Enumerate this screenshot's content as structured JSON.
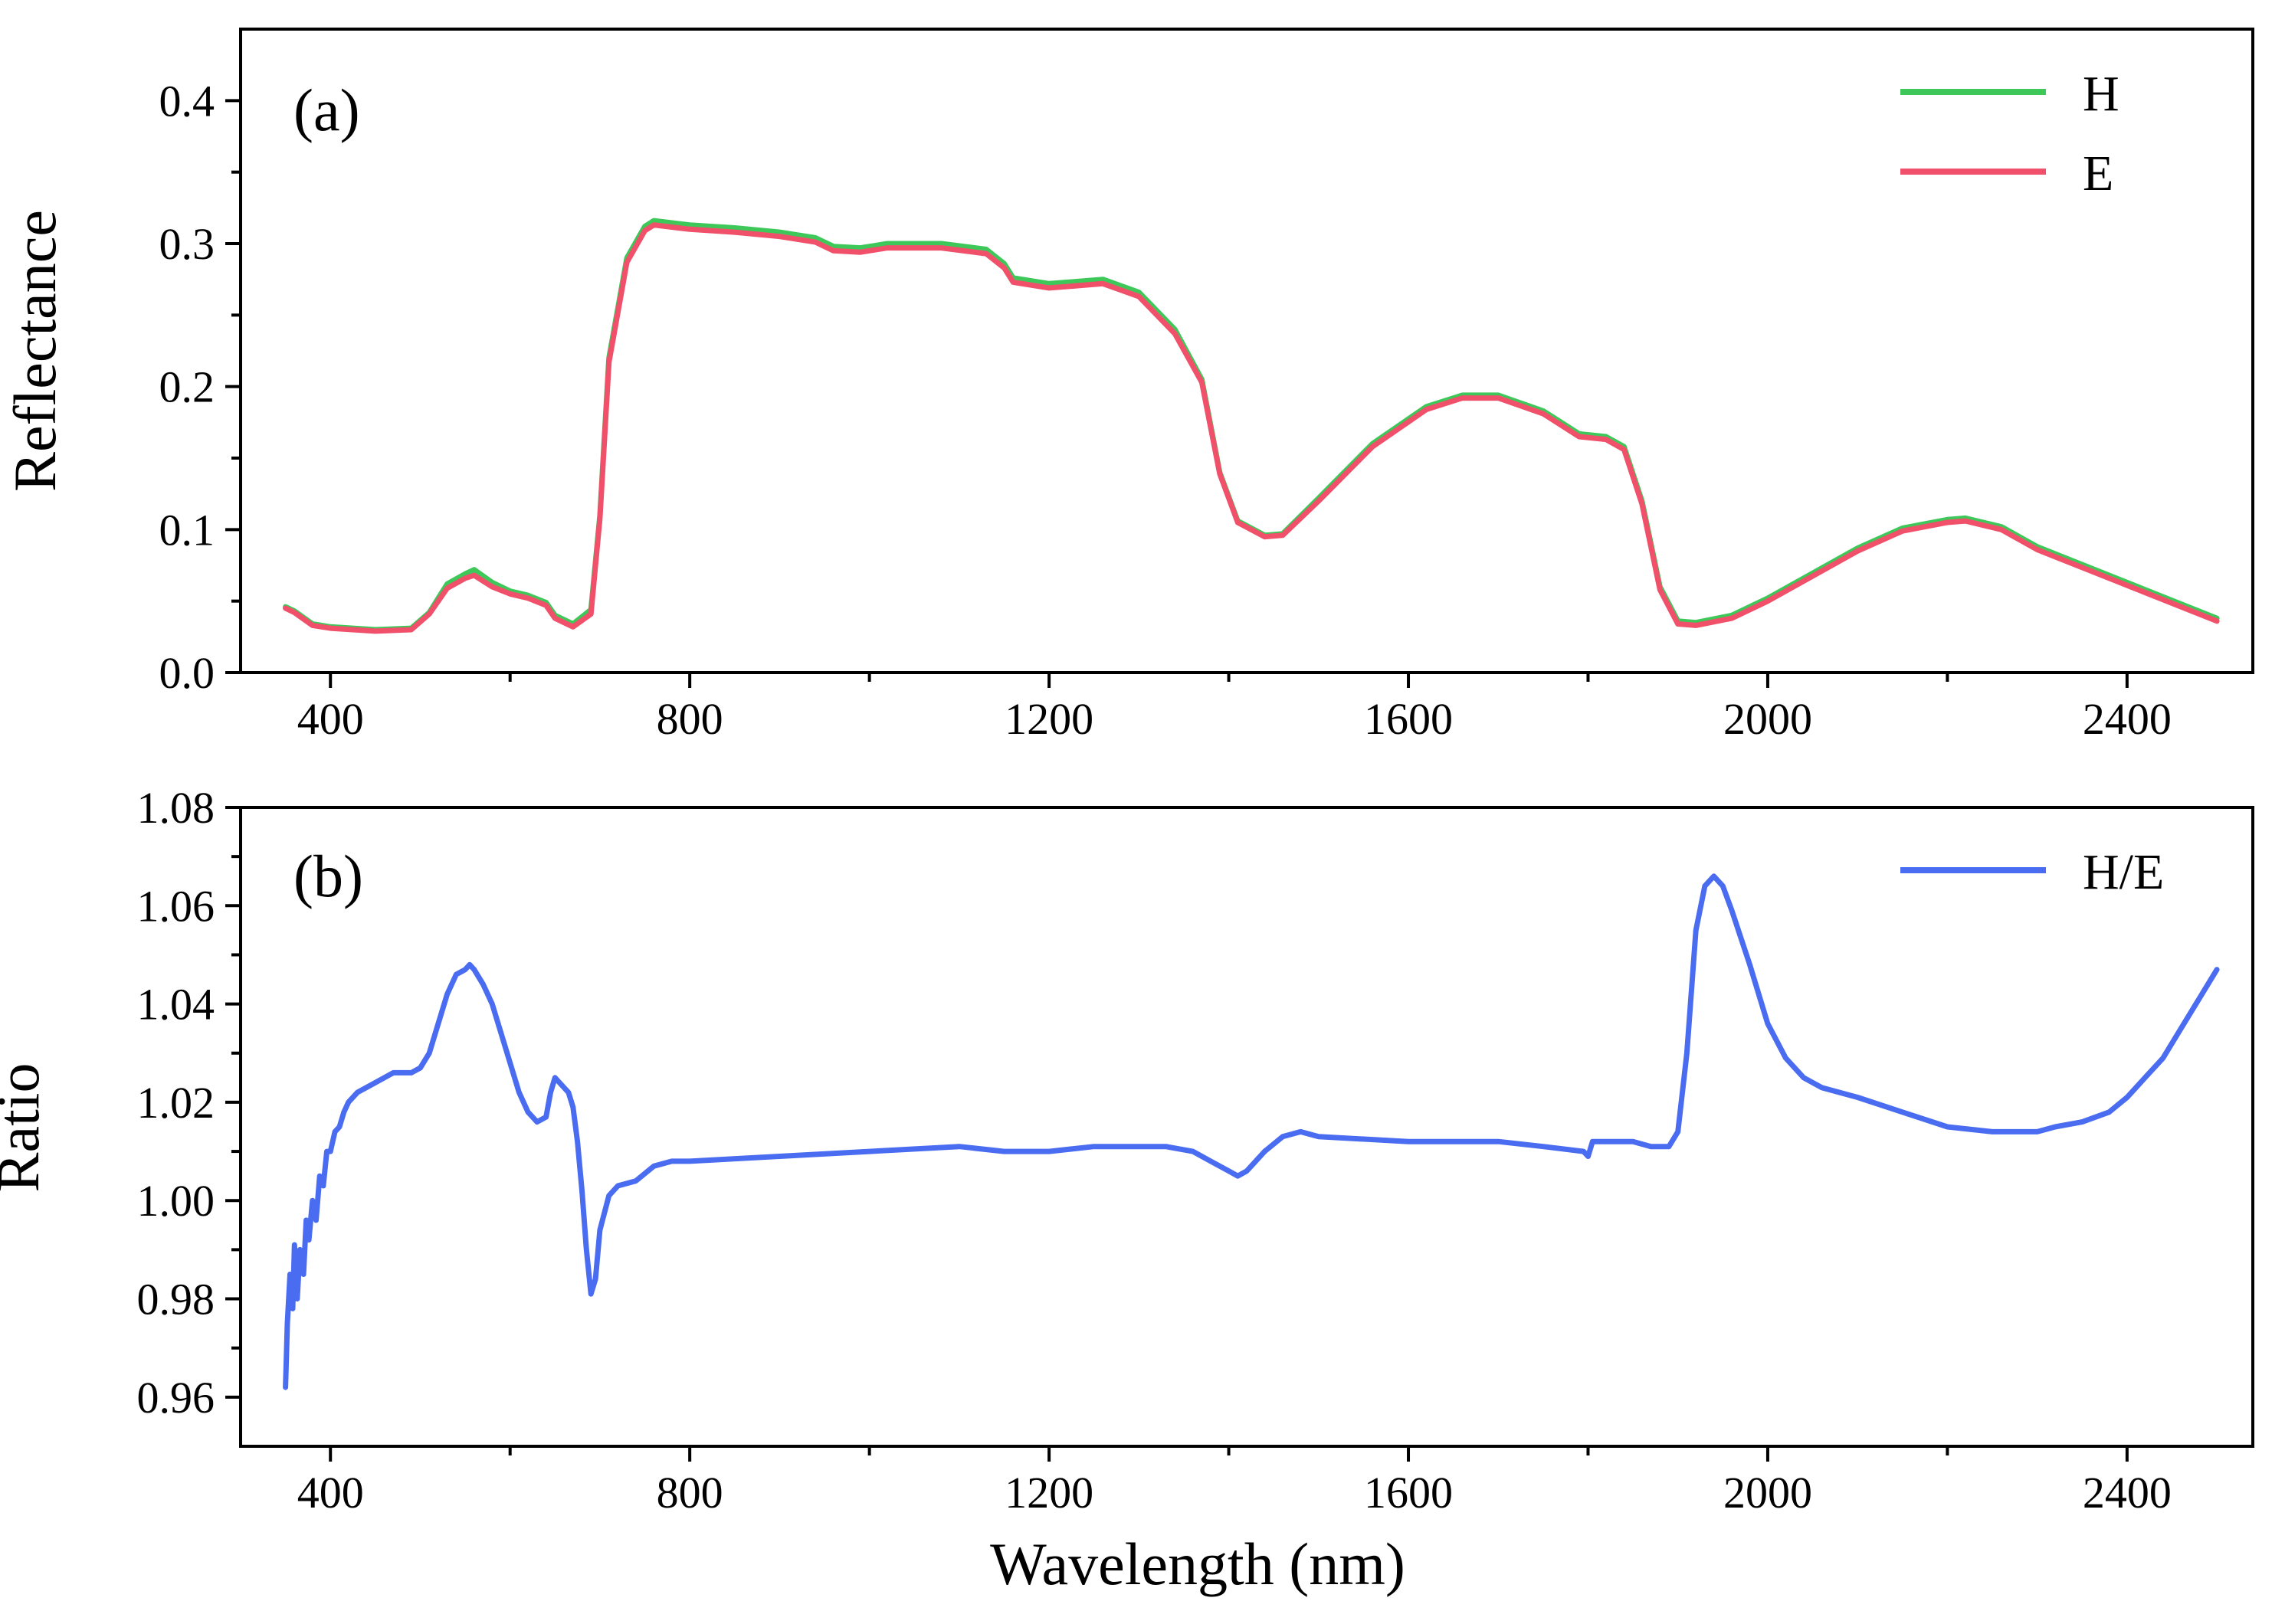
{
  "chart_data": [
    {
      "id": "a",
      "type": "line",
      "panel_label": "(a)",
      "title": "",
      "xlabel": "",
      "ylabel": "Reflectance",
      "xlim": [
        300,
        2540
      ],
      "ylim": [
        0.0,
        0.45
      ],
      "x_ticks": [
        400,
        800,
        1200,
        1600,
        2000,
        2400
      ],
      "x_minor_ticks": [
        600,
        1000,
        1400,
        1800,
        2200
      ],
      "y_ticks": [
        0.0,
        0.1,
        0.2,
        0.3,
        0.4
      ],
      "x_tick_labels": [
        "400",
        "800",
        "1200",
        "1600",
        "2000",
        "2400"
      ],
      "y_tick_labels": [
        "0.0",
        "0.1",
        "0.2",
        "0.3",
        "0.4"
      ],
      "legend_position": "top-right",
      "series": [
        {
          "name": "H",
          "color": "#3ec85a",
          "x": [
            350,
            360,
            380,
            400,
            450,
            490,
            510,
            530,
            550,
            560,
            580,
            600,
            620,
            640,
            650,
            670,
            690,
            700,
            710,
            730,
            750,
            760,
            800,
            850,
            900,
            940,
            960,
            990,
            1020,
            1080,
            1130,
            1150,
            1160,
            1200,
            1260,
            1300,
            1340,
            1370,
            1390,
            1410,
            1440,
            1460,
            1500,
            1560,
            1620,
            1660,
            1700,
            1750,
            1790,
            1820,
            1840,
            1860,
            1880,
            1900,
            1920,
            1960,
            2000,
            2100,
            2150,
            2200,
            2220,
            2260,
            2300,
            2400,
            2500
          ],
          "values": [
            0.046,
            0.043,
            0.034,
            0.032,
            0.03,
            0.031,
            0.042,
            0.062,
            0.069,
            0.072,
            0.063,
            0.057,
            0.054,
            0.049,
            0.04,
            0.034,
            0.044,
            0.11,
            0.22,
            0.29,
            0.312,
            0.316,
            0.313,
            0.311,
            0.308,
            0.304,
            0.298,
            0.297,
            0.3,
            0.3,
            0.296,
            0.286,
            0.276,
            0.272,
            0.275,
            0.266,
            0.24,
            0.205,
            0.14,
            0.106,
            0.096,
            0.097,
            0.122,
            0.16,
            0.186,
            0.194,
            0.194,
            0.183,
            0.167,
            0.165,
            0.158,
            0.12,
            0.06,
            0.036,
            0.035,
            0.04,
            0.052,
            0.087,
            0.101,
            0.107,
            0.108,
            0.102,
            0.088,
            0.063,
            0.038
          ]
        },
        {
          "name": "E",
          "color": "#f0506a",
          "x": [
            350,
            360,
            380,
            400,
            450,
            490,
            510,
            530,
            550,
            560,
            580,
            600,
            620,
            640,
            650,
            670,
            690,
            700,
            710,
            730,
            750,
            760,
            800,
            850,
            900,
            940,
            960,
            990,
            1020,
            1080,
            1130,
            1150,
            1160,
            1200,
            1260,
            1300,
            1340,
            1370,
            1390,
            1410,
            1440,
            1460,
            1500,
            1560,
            1620,
            1660,
            1700,
            1750,
            1790,
            1820,
            1840,
            1860,
            1880,
            1900,
            1920,
            1960,
            2000,
            2100,
            2150,
            2200,
            2220,
            2260,
            2300,
            2400,
            2500
          ],
          "values": [
            0.045,
            0.042,
            0.033,
            0.031,
            0.029,
            0.03,
            0.041,
            0.059,
            0.066,
            0.068,
            0.06,
            0.055,
            0.052,
            0.047,
            0.038,
            0.032,
            0.041,
            0.108,
            0.217,
            0.287,
            0.309,
            0.313,
            0.31,
            0.308,
            0.305,
            0.301,
            0.295,
            0.294,
            0.297,
            0.297,
            0.293,
            0.283,
            0.273,
            0.269,
            0.272,
            0.263,
            0.237,
            0.203,
            0.139,
            0.105,
            0.095,
            0.096,
            0.12,
            0.158,
            0.184,
            0.192,
            0.192,
            0.181,
            0.165,
            0.163,
            0.156,
            0.118,
            0.058,
            0.034,
            0.033,
            0.038,
            0.05,
            0.085,
            0.099,
            0.105,
            0.106,
            0.1,
            0.086,
            0.061,
            0.036
          ]
        }
      ]
    },
    {
      "id": "b",
      "type": "line",
      "panel_label": "(b)",
      "title": "",
      "xlabel": "Wavelength (nm)",
      "ylabel": "Ratio",
      "xlim": [
        300,
        2540
      ],
      "ylim": [
        0.95,
        1.08
      ],
      "x_ticks": [
        400,
        800,
        1200,
        1600,
        2000,
        2400
      ],
      "x_minor_ticks": [
        600,
        1000,
        1400,
        1800,
        2200
      ],
      "y_ticks": [
        0.96,
        0.98,
        1.0,
        1.02,
        1.04,
        1.06,
        1.08
      ],
      "x_tick_labels": [
        "400",
        "800",
        "1200",
        "1600",
        "2000",
        "2400"
      ],
      "y_tick_labels": [
        "0.96",
        "0.98",
        "1.00",
        "1.02",
        "1.04",
        "1.06",
        "1.08"
      ],
      "legend_position": "top-right",
      "series": [
        {
          "name": "H/E",
          "color": "#4a6cf0",
          "x": [
            350,
            352,
            355,
            358,
            360,
            363,
            366,
            370,
            373,
            376,
            380,
            384,
            388,
            392,
            396,
            400,
            405,
            410,
            415,
            420,
            430,
            440,
            450,
            460,
            470,
            480,
            490,
            500,
            510,
            520,
            530,
            540,
            550,
            555,
            560,
            570,
            580,
            590,
            600,
            610,
            620,
            630,
            640,
            645,
            650,
            655,
            660,
            665,
            670,
            675,
            680,
            685,
            690,
            695,
            700,
            710,
            720,
            740,
            760,
            780,
            800,
            900,
            1000,
            1100,
            1150,
            1200,
            1250,
            1300,
            1330,
            1360,
            1380,
            1400,
            1410,
            1420,
            1440,
            1460,
            1480,
            1500,
            1600,
            1700,
            1750,
            1795,
            1800,
            1805,
            1850,
            1870,
            1880,
            1890,
            1900,
            1910,
            1920,
            1930,
            1940,
            1950,
            1960,
            1980,
            2000,
            2020,
            2040,
            2060,
            2080,
            2100,
            2150,
            2200,
            2250,
            2300,
            2320,
            2350,
            2380,
            2400,
            2420,
            2440,
            2460,
            2480,
            2500
          ],
          "values": [
            0.962,
            0.975,
            0.985,
            0.978,
            0.991,
            0.98,
            0.99,
            0.985,
            0.996,
            0.992,
            1.0,
            0.996,
            1.005,
            1.003,
            1.01,
            1.01,
            1.014,
            1.015,
            1.018,
            1.02,
            1.022,
            1.023,
            1.024,
            1.025,
            1.026,
            1.026,
            1.026,
            1.027,
            1.03,
            1.036,
            1.042,
            1.046,
            1.047,
            1.048,
            1.047,
            1.044,
            1.04,
            1.034,
            1.028,
            1.022,
            1.018,
            1.016,
            1.017,
            1.022,
            1.025,
            1.024,
            1.023,
            1.022,
            1.019,
            1.012,
            1.002,
            0.99,
            0.981,
            0.984,
            0.994,
            1.001,
            1.003,
            1.004,
            1.007,
            1.008,
            1.008,
            1.009,
            1.01,
            1.011,
            1.01,
            1.01,
            1.011,
            1.011,
            1.011,
            1.01,
            1.008,
            1.006,
            1.005,
            1.006,
            1.01,
            1.013,
            1.014,
            1.013,
            1.012,
            1.012,
            1.011,
            1.01,
            1.009,
            1.012,
            1.012,
            1.011,
            1.011,
            1.011,
            1.014,
            1.03,
            1.055,
            1.064,
            1.066,
            1.064,
            1.059,
            1.048,
            1.036,
            1.029,
            1.025,
            1.023,
            1.022,
            1.021,
            1.018,
            1.015,
            1.014,
            1.014,
            1.015,
            1.016,
            1.018,
            1.021,
            1.025,
            1.029,
            1.035,
            1.041,
            1.047
          ]
        }
      ]
    }
  ]
}
